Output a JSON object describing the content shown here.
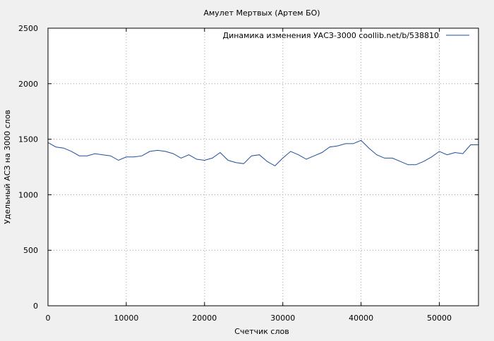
{
  "chart_data": {
    "type": "line",
    "title": "Амулет Мертвых (Артем БО)",
    "xlabel": "Счетчик слов",
    "ylabel": "Удельный АСЗ на 3000 слов",
    "xlim": [
      0,
      55000
    ],
    "ylim": [
      0,
      2500
    ],
    "x_ticks": [
      0,
      10000,
      20000,
      30000,
      40000,
      50000
    ],
    "y_ticks": [
      0,
      500,
      1000,
      1500,
      2000,
      2500
    ],
    "grid": true,
    "legend_position": "top-right",
    "series": [
      {
        "name": "Динамика изменения УАСЗ-3000  coollib.net/b/538810",
        "color": "#1f4e9c",
        "x": [
          0,
          1000,
          2000,
          3000,
          4000,
          5000,
          6000,
          7000,
          8000,
          9000,
          10000,
          11000,
          12000,
          13000,
          14000,
          15000,
          16000,
          17000,
          18000,
          19000,
          20000,
          21000,
          22000,
          23000,
          24000,
          25000,
          26000,
          27000,
          28000,
          29000,
          30000,
          31000,
          32000,
          33000,
          34000,
          35000,
          36000,
          37000,
          38000,
          39000,
          40000,
          41000,
          42000,
          43000,
          44000,
          45000,
          46000,
          47000,
          48000,
          49000,
          50000,
          51000,
          52000,
          53000,
          54000,
          55000
        ],
        "y": [
          1470,
          1430,
          1420,
          1390,
          1350,
          1350,
          1370,
          1360,
          1350,
          1310,
          1340,
          1340,
          1350,
          1390,
          1400,
          1390,
          1370,
          1330,
          1360,
          1320,
          1310,
          1330,
          1380,
          1310,
          1290,
          1280,
          1350,
          1360,
          1300,
          1260,
          1330,
          1390,
          1360,
          1320,
          1350,
          1380,
          1430,
          1440,
          1460,
          1460,
          1490,
          1420,
          1360,
          1330,
          1330,
          1300,
          1270,
          1270,
          1300,
          1340,
          1390,
          1360,
          1380,
          1370,
          1450,
          1450
        ]
      }
    ]
  }
}
